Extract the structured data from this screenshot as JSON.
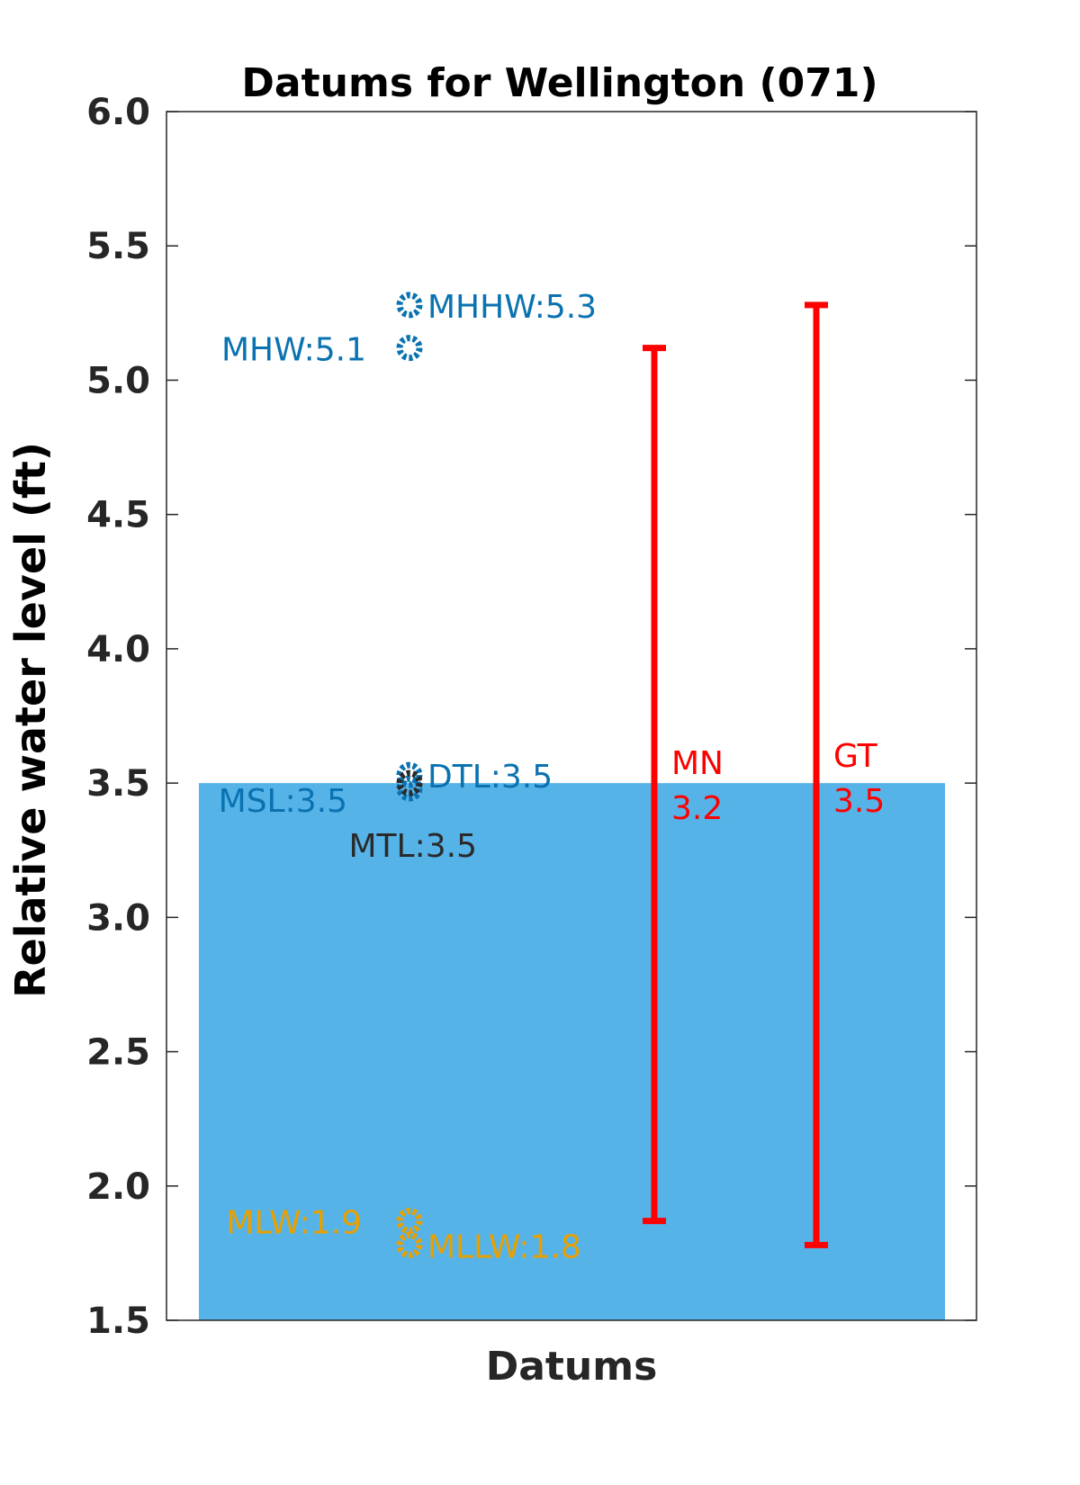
{
  "chart_data": {
    "type": "scatter",
    "title": "Datums for Wellington (071)",
    "xlabel": "Datums",
    "ylabel": "Relative water level (ft)",
    "ylim": [
      1.5,
      6.0
    ],
    "yticks": [
      "1.5",
      "2.0",
      "2.5",
      "3.0",
      "3.5",
      "4.0",
      "4.5",
      "5.0",
      "5.5",
      "6.0"
    ],
    "grid": false,
    "colors": {
      "high": "#0a72b0",
      "low": "#e8a000",
      "mid": "#2a2a2a",
      "range": "#ff0000",
      "fill": "#56b3e8"
    },
    "water_fill": {
      "from": 1.5,
      "to": 3.5
    },
    "points": [
      {
        "name": "MHHW",
        "value": 5.28,
        "label": "MHHW:5.3",
        "group": "high"
      },
      {
        "name": "MHW",
        "value": 5.12,
        "label": "MHW:5.1",
        "group": "high"
      },
      {
        "name": "DTL",
        "value": 3.53,
        "label": "DTL:3.5",
        "group": "high"
      },
      {
        "name": "MSL",
        "value": 3.48,
        "label": "MSL:3.5",
        "group": "high"
      },
      {
        "name": "MTL",
        "value": 3.5,
        "label": "MTL:3.5",
        "group": "mid"
      },
      {
        "name": "MLW",
        "value": 1.87,
        "label": "MLW:1.9",
        "group": "low"
      },
      {
        "name": "MLLW",
        "value": 1.78,
        "label": "MLLW:1.8",
        "group": "low"
      }
    ],
    "ranges": [
      {
        "name": "MN",
        "value": "3.2",
        "low": 1.87,
        "high": 5.12
      },
      {
        "name": "GT",
        "value": "3.5",
        "low": 1.78,
        "high": 5.28
      }
    ]
  }
}
